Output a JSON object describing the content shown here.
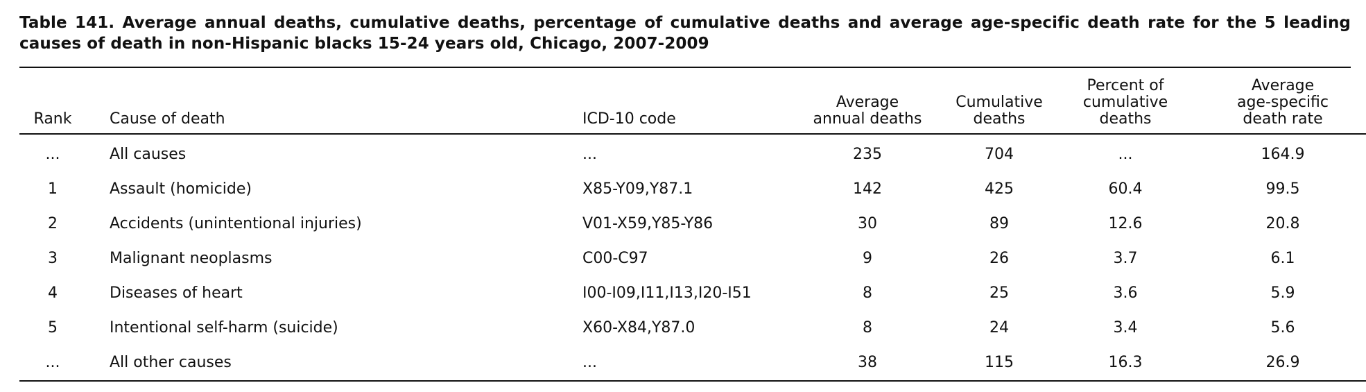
{
  "title": "Table 141. Average annual deaths, cumulative deaths, percentage of cumulative deaths and average age-specific death rate for the 5 leading causes of death in non-Hispanic blacks 15-24 years old, Chicago, 2007-2009",
  "headers": {
    "rank": "Rank",
    "cause": "Cause of death",
    "icd": "ICD-10 code",
    "avg_deaths": [
      "Average",
      "annual deaths"
    ],
    "cum_deaths": [
      "Cumulative",
      "deaths"
    ],
    "pct_cum": [
      "Percent of",
      "cumulative",
      "deaths"
    ],
    "rate": [
      "Average",
      "age-specific",
      "death rate"
    ]
  },
  "rows": [
    {
      "rank": "...",
      "cause": "All causes",
      "icd": "...",
      "avg_deaths": "235",
      "cum_deaths": "704",
      "pct_cum": "...",
      "rate": "164.9"
    },
    {
      "rank": "1",
      "cause": "Assault (homicide)",
      "icd": "X85-Y09,Y87.1",
      "avg_deaths": "142",
      "cum_deaths": "425",
      "pct_cum": "60.4",
      "rate": "99.5"
    },
    {
      "rank": "2",
      "cause": "Accidents (unintentional injuries)",
      "icd": "V01-X59,Y85-Y86",
      "avg_deaths": "30",
      "cum_deaths": "89",
      "pct_cum": "12.6",
      "rate": "20.8"
    },
    {
      "rank": "3",
      "cause": "Malignant neoplasms",
      "icd": "C00-C97",
      "avg_deaths": "9",
      "cum_deaths": "26",
      "pct_cum": "3.7",
      "rate": "6.1"
    },
    {
      "rank": "4",
      "cause": "Diseases of heart",
      "icd": "I00-I09,I11,I13,I20-I51",
      "avg_deaths": "8",
      "cum_deaths": "25",
      "pct_cum": "3.6",
      "rate": "5.9"
    },
    {
      "rank": "5",
      "cause": "Intentional self-harm (suicide)",
      "icd": "X60-X84,Y87.0",
      "avg_deaths": "8",
      "cum_deaths": "24",
      "pct_cum": "3.4",
      "rate": "5.6"
    },
    {
      "rank": "...",
      "cause": "All other causes",
      "icd": "...",
      "avg_deaths": "38",
      "cum_deaths": "115",
      "pct_cum": "16.3",
      "rate": "26.9"
    }
  ]
}
